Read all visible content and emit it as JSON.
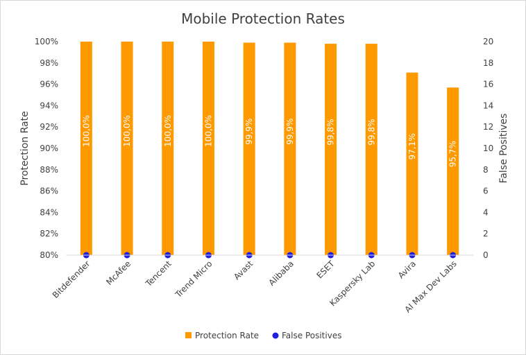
{
  "chart_data": {
    "type": "bar",
    "title": "Mobile Protection Rates",
    "categories": [
      "Bitdefender",
      "McAfee",
      "Tencent",
      "Trend Micro",
      "Avast",
      "Alibaba",
      "ESET",
      "Kaspersky Lab",
      "Avira",
      "AI Max Dev Labs"
    ],
    "series": [
      {
        "name": "Protection Rate",
        "type": "bar",
        "axis": "primary",
        "color": "#ff9900",
        "values": [
          100.0,
          100.0,
          100.0,
          100.0,
          99.9,
          99.9,
          99.8,
          99.8,
          97.1,
          95.7
        ],
        "data_labels": [
          "100,0%",
          "100,0%",
          "100,0%",
          "100,0%",
          "99,9%",
          "99,9%",
          "99,8%",
          "99,8%",
          "97,1%",
          "95,7%"
        ]
      },
      {
        "name": "False Positives",
        "type": "scatter",
        "axis": "secondary",
        "color": "#1f1fe0",
        "values": [
          0,
          0,
          0,
          0,
          0,
          0,
          0,
          0,
          0,
          0
        ]
      }
    ],
    "ylabel": "Protection Rate",
    "y2label": "False Positives",
    "ylim": [
      80,
      100
    ],
    "y2lim": [
      0,
      20
    ],
    "yticks": [
      80,
      82,
      84,
      86,
      88,
      90,
      92,
      94,
      96,
      98,
      100
    ],
    "ytick_labels": [
      "80%",
      "82%",
      "84%",
      "86%",
      "88%",
      "90%",
      "92%",
      "94%",
      "96%",
      "98%",
      "100%"
    ],
    "y2ticks": [
      0,
      2,
      4,
      6,
      8,
      10,
      12,
      14,
      16,
      18,
      20
    ],
    "y2tick_labels": [
      "0",
      "2",
      "4",
      "6",
      "8",
      "10",
      "12",
      "14",
      "16",
      "18",
      "20"
    ],
    "grid": false,
    "legend_position": "bottom"
  }
}
